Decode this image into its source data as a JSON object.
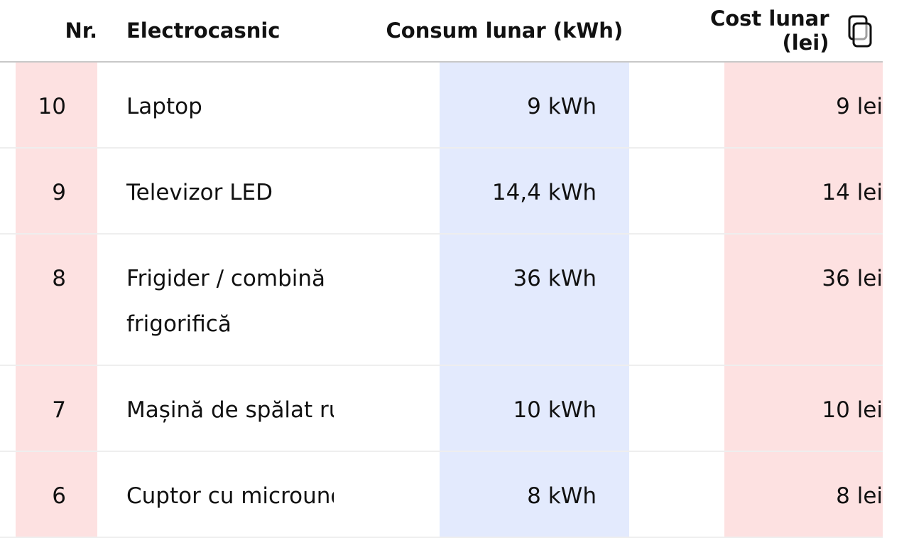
{
  "table": {
    "header": [
      "Nr.",
      "Electrocasnic",
      "Consum lunar (kWh)",
      "Cost lunar (lei)"
    ],
    "rows": [
      [
        "10",
        "Laptop",
        "9 kWh",
        "9 lei"
      ],
      [
        "9",
        "Televizor LED",
        "14,4 kWh",
        "14 lei"
      ],
      [
        "8",
        "Frigider / combină frigorifică",
        "36 kWh",
        "36 lei"
      ],
      [
        "7",
        "Mașină de spălat rufe",
        "10 kWh",
        "10 lei"
      ],
      [
        "6",
        "Cuptor cu microunde",
        "8 kWh",
        "8 lei"
      ]
    ]
  }
}
